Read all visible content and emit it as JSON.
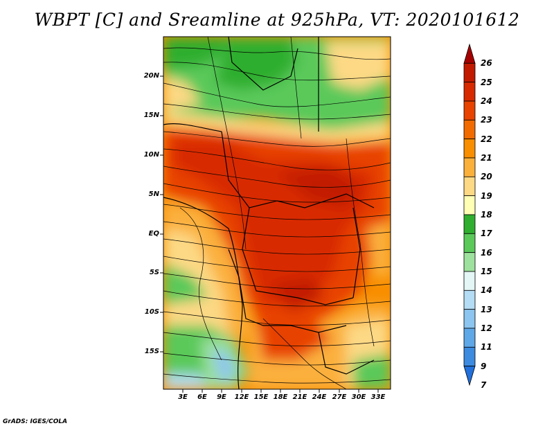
{
  "title": "WBPT [C] and Sreamline at 925hPa, VT: 2020101612",
  "footer": "GrADS: IGES/COLA",
  "lat_labels": [
    "20N",
    "15N",
    "10N",
    "5N",
    "EQ",
    "5S",
    "10S",
    "15S"
  ],
  "lon_labels": [
    "3E",
    "6E",
    "9E",
    "12E",
    "15E",
    "18E",
    "21E",
    "24E",
    "27E",
    "30E",
    "33E"
  ],
  "colorbar": {
    "labels": [
      "26",
      "25",
      "24",
      "23",
      "22",
      "21",
      "20",
      "19",
      "18",
      "17",
      "16",
      "15",
      "14",
      "13",
      "12",
      "11",
      "9",
      "7"
    ],
    "colors": [
      "#a50000",
      "#c21a00",
      "#d82a00",
      "#e84300",
      "#f26b00",
      "#f88e00",
      "#fbb03c",
      "#fdd985",
      "#ffffb5",
      "#2fae2f",
      "#5ac95a",
      "#9ee19e",
      "#e4f6f6",
      "#b4dcf4",
      "#8cc5ef",
      "#5fa8e8",
      "#3c8be0",
      "#2170dc"
    ]
  }
}
